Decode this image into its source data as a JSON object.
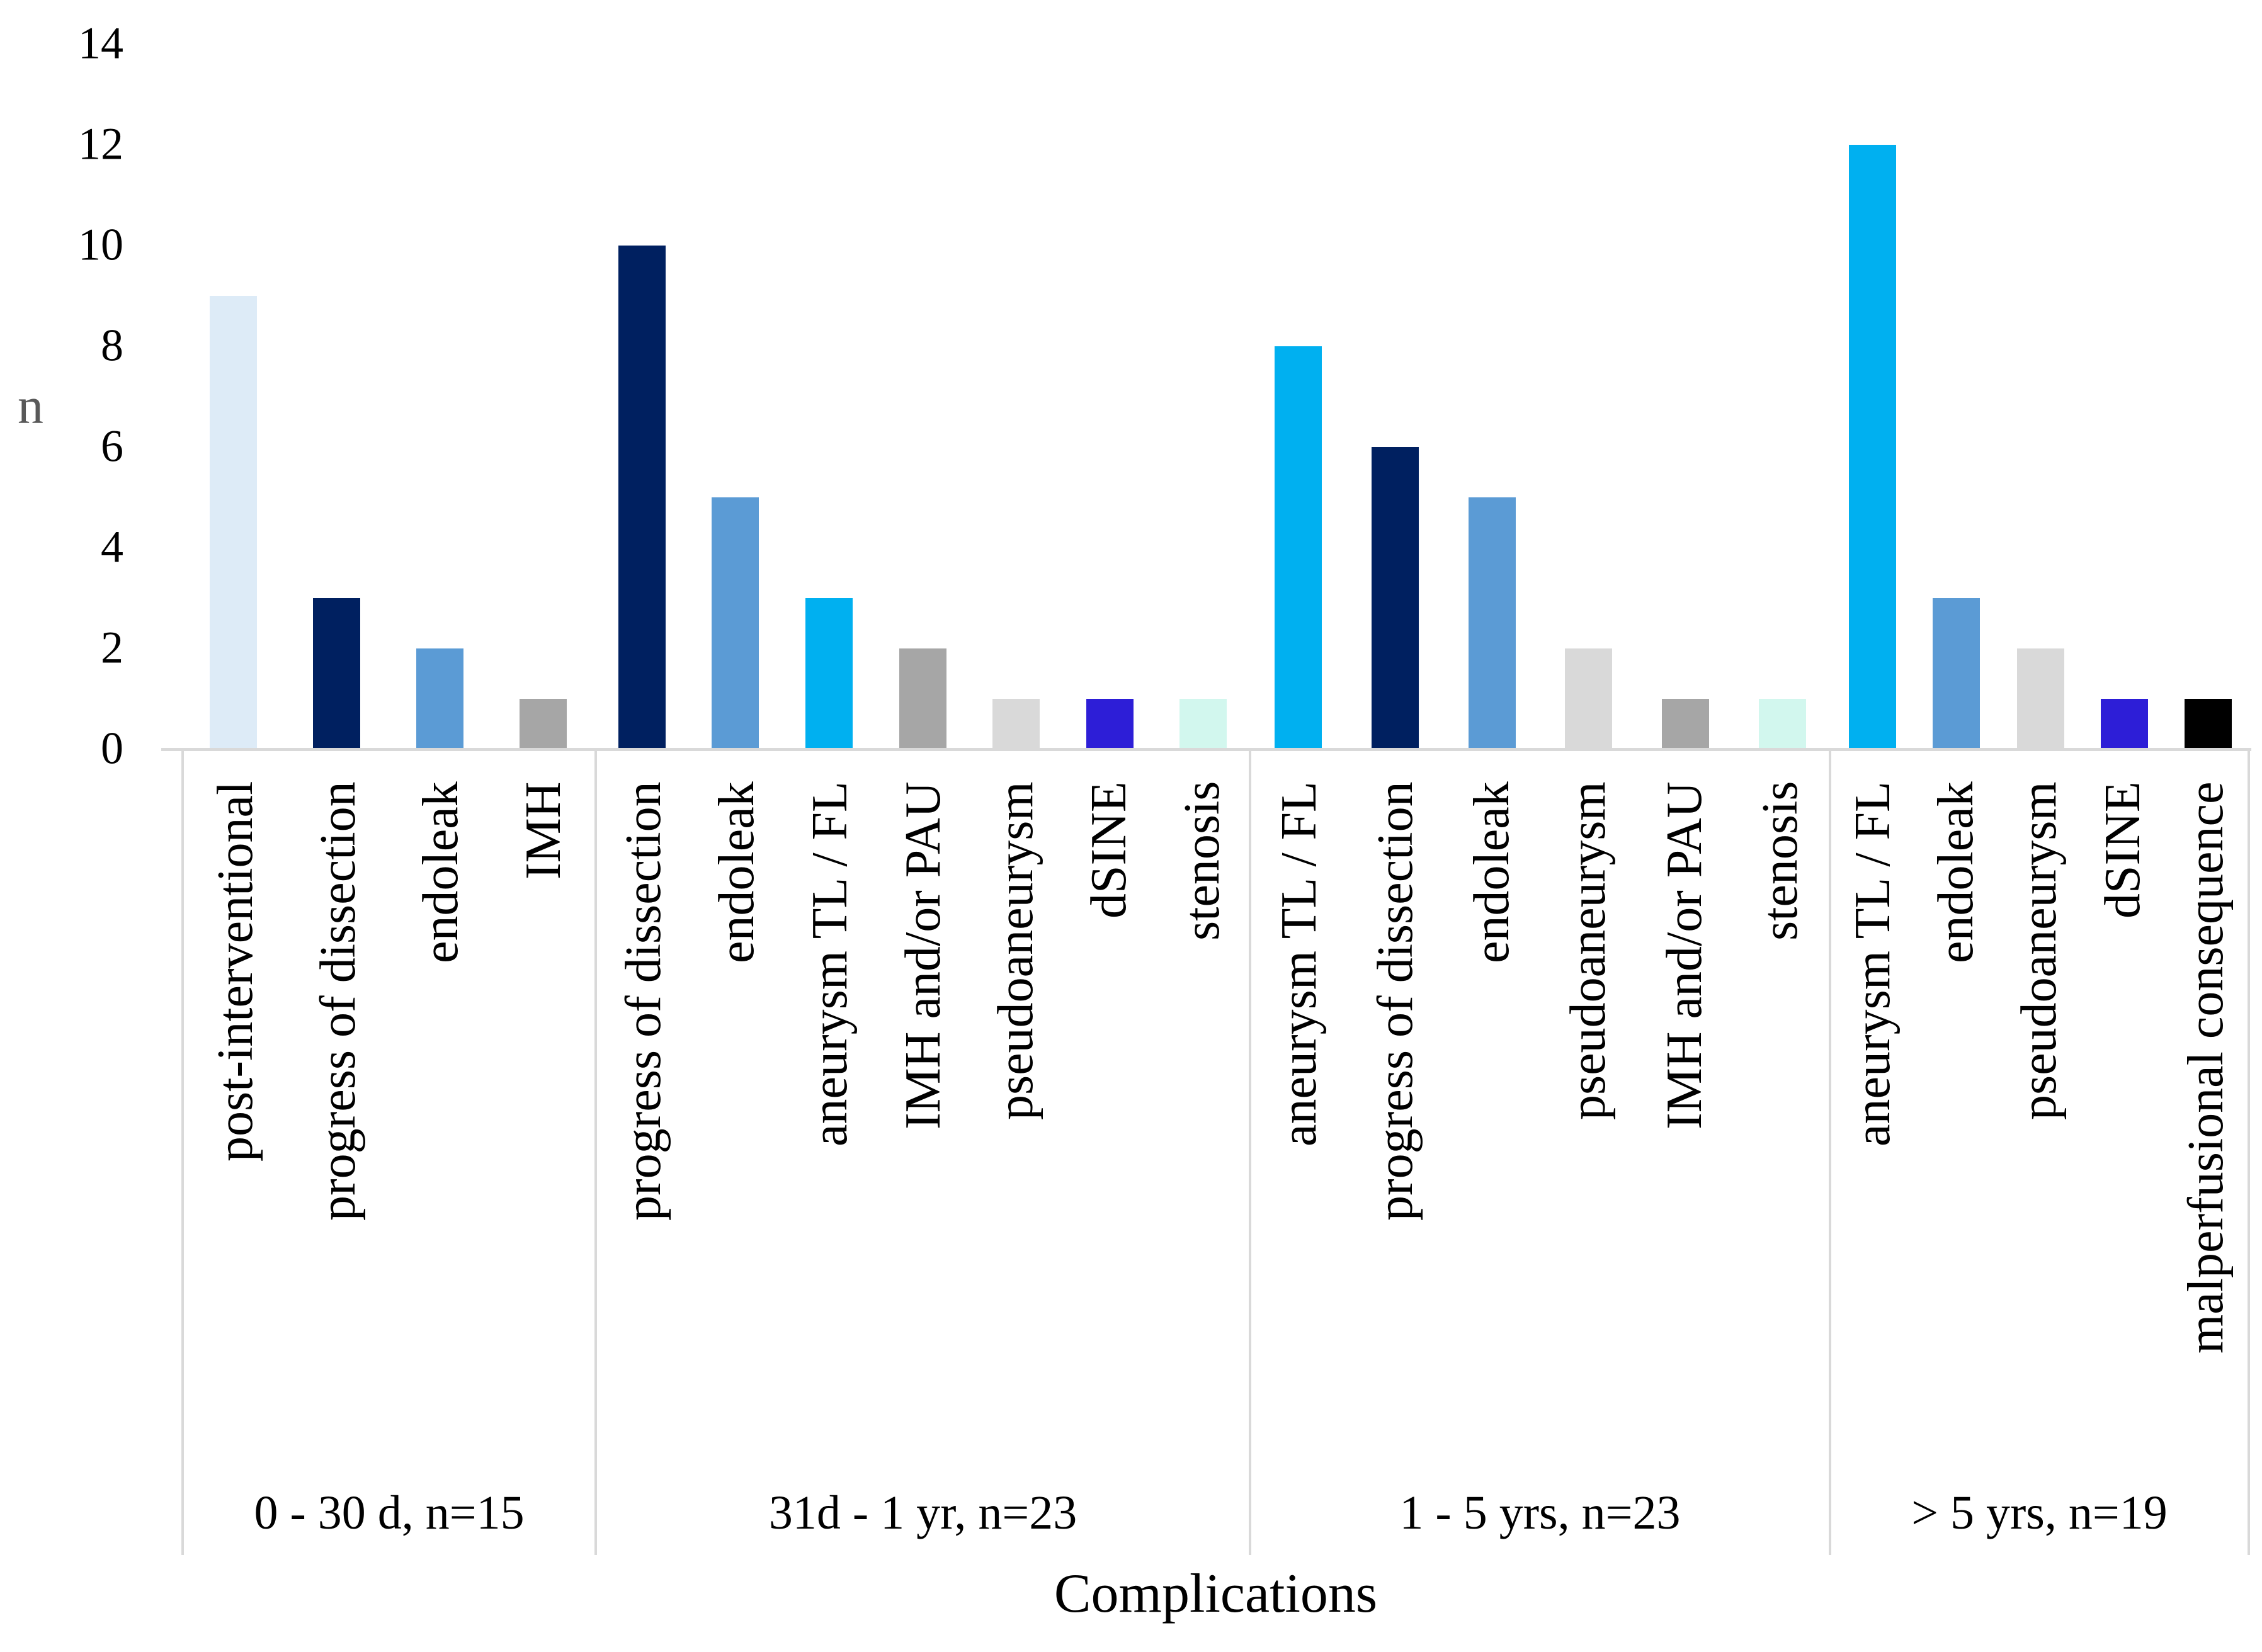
{
  "chart_data": {
    "type": "bar",
    "title": "",
    "xlabel": "Complications",
    "ylabel": "n",
    "ylim": [
      0,
      14
    ],
    "yticks": [
      0,
      2,
      4,
      6,
      8,
      10,
      12,
      14
    ],
    "grid": false,
    "legend": false,
    "colors": {
      "axis_line": "#D9D9D9",
      "tick_text": "#000000",
      "ylabel_text": "#595959"
    },
    "groups": [
      {
        "label": "0 - 30 d, n=15",
        "bars": [
          {
            "category": "post-interventional",
            "value": 9,
            "color": "#DDEBF7"
          },
          {
            "category": "progress of dissection",
            "value": 3,
            "color": "#002060"
          },
          {
            "category": "endoleak",
            "value": 2,
            "color": "#5B9BD5"
          },
          {
            "category": "IMH",
            "value": 1,
            "color": "#A6A6A6"
          }
        ]
      },
      {
        "label": "31d - 1 yr, n=23",
        "bars": [
          {
            "category": "progress of dissection",
            "value": 10,
            "color": "#002060"
          },
          {
            "category": "endoleak",
            "value": 5,
            "color": "#5B9BD5"
          },
          {
            "category": "aneurysm TL / FL",
            "value": 3,
            "color": "#00B0F0"
          },
          {
            "category": "IMH and/or PAU",
            "value": 2,
            "color": "#A6A6A6"
          },
          {
            "category": "pseudoaneurysm",
            "value": 1,
            "color": "#D9D9D9"
          },
          {
            "category": "dSINE",
            "value": 1,
            "color": "#2D1ED7"
          },
          {
            "category": "stenosis",
            "value": 1,
            "color": "#D2F7EE"
          }
        ]
      },
      {
        "label": "1 - 5 yrs, n=23",
        "bars": [
          {
            "category": "aneurysm TL / FL",
            "value": 8,
            "color": "#00B0F0"
          },
          {
            "category": "progress of dissection",
            "value": 6,
            "color": "#002060"
          },
          {
            "category": "endoleak",
            "value": 5,
            "color": "#5B9BD5"
          },
          {
            "category": "pseudoaneurysm",
            "value": 2,
            "color": "#D9D9D9"
          },
          {
            "category": "IMH and/or PAU",
            "value": 1,
            "color": "#A6A6A6"
          },
          {
            "category": "stenosis",
            "value": 1,
            "color": "#D2F7EE"
          }
        ]
      },
      {
        "label": "> 5 yrs, n=19",
        "bars": [
          {
            "category": "aneurysm TL / FL",
            "value": 12,
            "color": "#00B0F0"
          },
          {
            "category": "endoleak",
            "value": 3,
            "color": "#5B9BD5"
          },
          {
            "category": "pseudoaneurysm",
            "value": 2,
            "color": "#D9D9D9"
          },
          {
            "category": "dSINE",
            "value": 1,
            "color": "#2D1ED7"
          },
          {
            "category": "malperfusional consequence",
            "value": 1,
            "color": "#000000"
          }
        ]
      }
    ]
  }
}
